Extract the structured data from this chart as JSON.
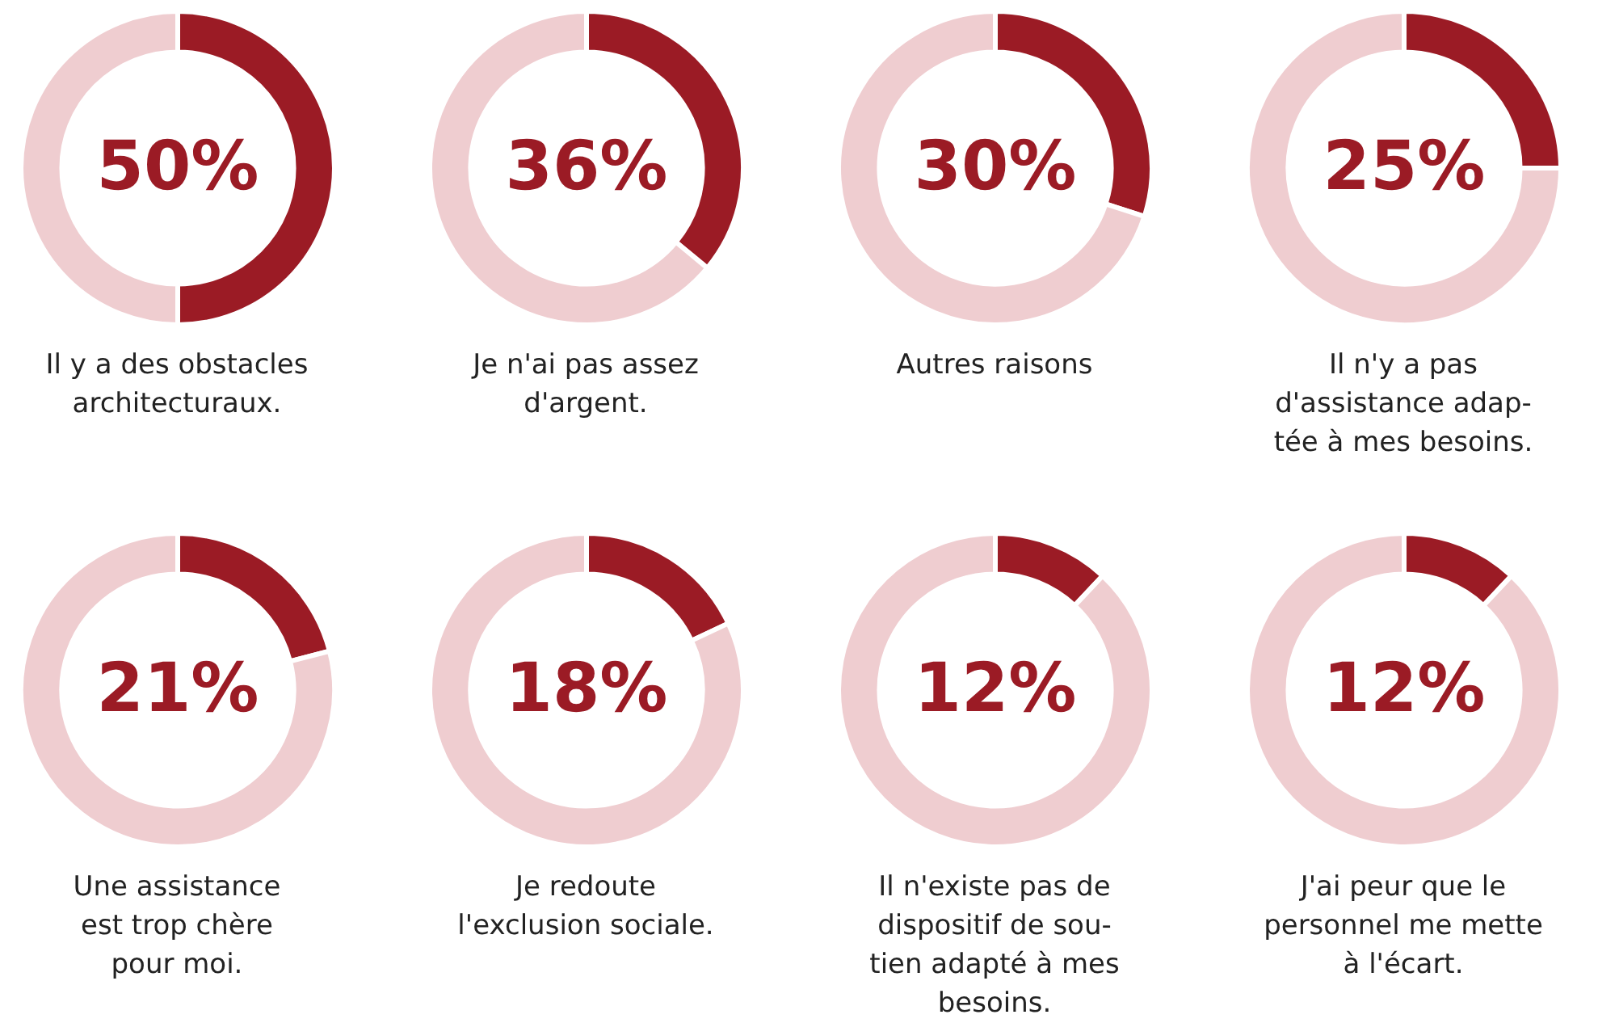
{
  "chart_data": [
    {
      "type": "donut",
      "title": "Il y a des obstacles\narchitecturaux.",
      "categories": [
        null,
        null
      ],
      "values": [
        50,
        50
      ],
      "colors": [
        "#9b1b25",
        "#efcdd0"
      ],
      "value_labels": [
        "50%",
        null
      ],
      "legend": false
    },
    {
      "type": "donut",
      "title": "Je n'ai pas assez\nd'argent.",
      "categories": [
        null,
        null
      ],
      "values": [
        36,
        64
      ],
      "colors": [
        "#9b1b25",
        "#efcdd0"
      ],
      "value_labels": [
        "36%",
        null
      ],
      "legend": false
    },
    {
      "type": "donut",
      "title": "Autres raisons",
      "categories": [
        null,
        null
      ],
      "values": [
        30,
        70
      ],
      "colors": [
        "#9b1b25",
        "#efcdd0"
      ],
      "value_labels": [
        "30%",
        null
      ],
      "legend": false
    },
    {
      "type": "donut",
      "title": "Il n'y a pas\nd'assistance adap-\ntée à mes besoins.",
      "categories": [
        null,
        null
      ],
      "values": [
        25,
        75
      ],
      "colors": [
        "#9b1b25",
        "#efcdd0"
      ],
      "value_labels": [
        "25%",
        null
      ],
      "legend": false
    },
    {
      "type": "donut",
      "title": "Une assistance\nest trop chère\npour moi.",
      "categories": [
        null,
        null
      ],
      "values": [
        21,
        79
      ],
      "colors": [
        "#9b1b25",
        "#efcdd0"
      ],
      "value_labels": [
        "21%",
        null
      ],
      "legend": false
    },
    {
      "type": "donut",
      "title": "Je redoute\nl'exclusion sociale.",
      "categories": [
        null,
        null
      ],
      "values": [
        18,
        82
      ],
      "colors": [
        "#9b1b25",
        "#efcdd0"
      ],
      "value_labels": [
        "18%",
        null
      ],
      "legend": false
    },
    {
      "type": "donut",
      "title": "Il n'existe pas de\ndispositif de sou-\ntien adapté à mes\nbesoins.",
      "categories": [
        null,
        null
      ],
      "values": [
        12,
        88
      ],
      "colors": [
        "#9b1b25",
        "#efcdd0"
      ],
      "value_labels": [
        "12%",
        null
      ],
      "legend": false
    },
    {
      "type": "donut",
      "title": "J'ai peur que le\npersonnel me mette\nà l'écart.",
      "categories": [
        null,
        null
      ],
      "values": [
        12,
        88
      ],
      "colors": [
        "#9b1b25",
        "#efcdd0"
      ],
      "value_labels": [
        "12%",
        null
      ],
      "legend": false
    }
  ]
}
